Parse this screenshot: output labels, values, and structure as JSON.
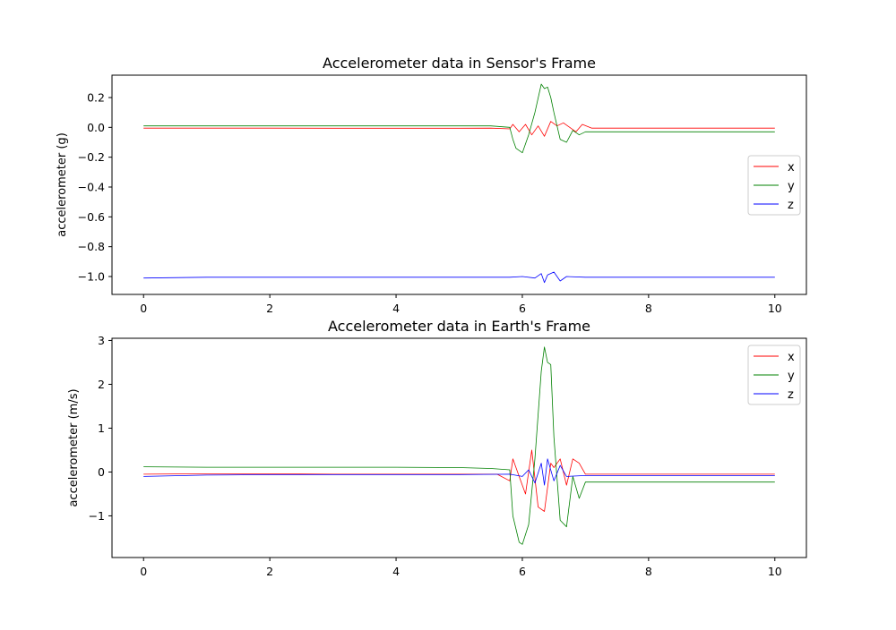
{
  "chart_data": [
    {
      "type": "line",
      "title": "Accelerometer data in Sensor's Frame",
      "xlabel": "",
      "ylabel": "accelerometer (g)",
      "xlim": [
        -0.5,
        10.5
      ],
      "ylim": [
        -1.12,
        0.35
      ],
      "xticks": [
        0,
        2,
        4,
        6,
        8,
        10
      ],
      "yticks": [
        0.2,
        0.0,
        -0.2,
        -0.4,
        -0.6,
        -0.8,
        -1.0
      ],
      "ytick_labels": [
        "0.2",
        "0.0",
        "−0.2",
        "−0.4",
        "−0.6",
        "−0.8",
        "−1.0"
      ],
      "legend_position": "center-right",
      "series": [
        {
          "name": "x",
          "color": "#ff0000",
          "x": [
            0,
            1,
            2,
            3,
            4,
            5,
            5.5,
            5.8,
            5.85,
            5.95,
            6.05,
            6.15,
            6.25,
            6.35,
            6.45,
            6.55,
            6.65,
            6.75,
            6.85,
            6.95,
            7.1,
            8,
            9,
            10
          ],
          "y": [
            -0.005,
            -0.005,
            -0.005,
            -0.006,
            -0.006,
            -0.006,
            -0.005,
            -0.01,
            0.02,
            -0.03,
            0.02,
            -0.05,
            0.01,
            -0.06,
            0.04,
            0.01,
            0.03,
            0.0,
            -0.03,
            0.02,
            -0.005,
            -0.005,
            -0.005,
            -0.005
          ]
        },
        {
          "name": "y",
          "color": "#008000",
          "x": [
            0,
            1,
            2,
            3,
            4,
            5,
            5.5,
            5.8,
            5.85,
            5.9,
            6.0,
            6.1,
            6.2,
            6.3,
            6.35,
            6.4,
            6.45,
            6.5,
            6.6,
            6.7,
            6.8,
            6.9,
            7.0,
            8,
            9,
            10
          ],
          "y": [
            0.01,
            0.01,
            0.01,
            0.01,
            0.01,
            0.01,
            0.01,
            0.0,
            -0.08,
            -0.14,
            -0.17,
            -0.05,
            0.1,
            0.29,
            0.26,
            0.27,
            0.2,
            0.1,
            -0.08,
            -0.1,
            -0.02,
            -0.05,
            -0.03,
            -0.03,
            -0.03,
            -0.03
          ]
        },
        {
          "name": "z",
          "color": "#0000ff",
          "x": [
            0,
            1,
            2,
            3,
            4,
            5,
            5.8,
            6.0,
            6.2,
            6.3,
            6.35,
            6.4,
            6.5,
            6.6,
            6.7,
            7.0,
            8,
            9,
            10
          ],
          "y": [
            -1.01,
            -1.005,
            -1.005,
            -1.005,
            -1.005,
            -1.005,
            -1.005,
            -1.0,
            -1.01,
            -0.98,
            -1.04,
            -0.99,
            -0.97,
            -1.03,
            -1.0,
            -1.005,
            -1.005,
            -1.005,
            -1.005
          ]
        }
      ]
    },
    {
      "type": "line",
      "title": "Accelerometer data in Earth's Frame",
      "xlabel": "",
      "ylabel": "accelerometer (m/s)",
      "xlim": [
        -0.5,
        10.5
      ],
      "ylim": [
        -1.95,
        3.05
      ],
      "xticks": [
        0,
        2,
        4,
        6,
        8,
        10
      ],
      "yticks": [
        3,
        2,
        1,
        0,
        -1
      ],
      "ytick_labels": [
        "3",
        "2",
        "1",
        "0",
        "−1"
      ],
      "legend_position": "upper-right",
      "series": [
        {
          "name": "x",
          "color": "#ff0000",
          "x": [
            0,
            1,
            2,
            3,
            4,
            5,
            5.6,
            5.8,
            5.85,
            5.95,
            6.05,
            6.15,
            6.25,
            6.35,
            6.45,
            6.5,
            6.6,
            6.7,
            6.8,
            6.9,
            7.0,
            8,
            9,
            10
          ],
          "y": [
            -0.05,
            -0.04,
            -0.04,
            -0.05,
            -0.05,
            -0.05,
            -0.05,
            -0.2,
            0.3,
            -0.1,
            -0.5,
            0.5,
            -0.8,
            -0.9,
            0.2,
            0.1,
            0.3,
            -0.3,
            0.3,
            0.2,
            -0.05,
            -0.05,
            -0.05,
            -0.05
          ]
        },
        {
          "name": "y",
          "color": "#008000",
          "x": [
            0,
            1,
            2,
            3,
            4,
            5,
            5.5,
            5.8,
            5.85,
            5.95,
            6.0,
            6.1,
            6.2,
            6.3,
            6.35,
            6.4,
            6.45,
            6.5,
            6.6,
            6.7,
            6.8,
            6.9,
            7.0,
            8,
            9,
            10
          ],
          "y": [
            0.12,
            0.11,
            0.11,
            0.11,
            0.11,
            0.1,
            0.08,
            0.05,
            -1.0,
            -1.6,
            -1.65,
            -1.2,
            0.3,
            2.3,
            2.85,
            2.5,
            2.45,
            0.8,
            -1.1,
            -1.25,
            -0.1,
            -0.6,
            -0.23,
            -0.23,
            -0.23,
            -0.23
          ]
        },
        {
          "name": "z",
          "color": "#0000ff",
          "x": [
            0,
            1,
            2,
            3,
            4,
            5,
            5.8,
            6.0,
            6.1,
            6.2,
            6.3,
            6.35,
            6.4,
            6.5,
            6.6,
            6.7,
            7.0,
            8,
            9,
            10
          ],
          "y": [
            -0.1,
            -0.07,
            -0.06,
            -0.06,
            -0.06,
            -0.06,
            -0.05,
            -0.1,
            0.05,
            -0.25,
            0.2,
            -0.3,
            0.3,
            -0.2,
            0.15,
            -0.1,
            -0.08,
            -0.08,
            -0.08,
            -0.08
          ]
        }
      ]
    }
  ]
}
